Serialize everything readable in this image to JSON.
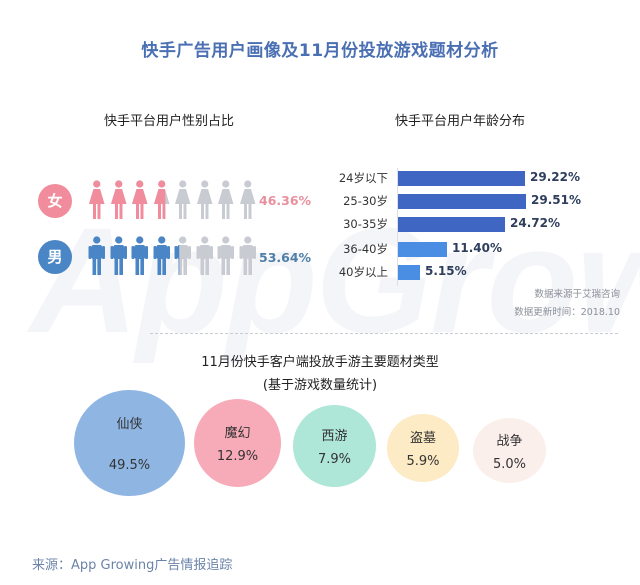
{
  "title": "快手广告用户画像及11月份投放游戏题材分析",
  "watermark": "AppGrowing",
  "gender": {
    "title": "快手平台用户性别占比",
    "rows": [
      {
        "label": "女",
        "percent": "46.36%",
        "color": "#f08c9c",
        "text_color": "#e8909e",
        "figures_filled": 3.7,
        "figure_type": "female"
      },
      {
        "label": "男",
        "percent": "53.64%",
        "color": "#4a86c5",
        "text_color": "#4f7fa8",
        "figures_filled": 4.3,
        "figure_type": "male"
      }
    ],
    "figures_total": 8,
    "empty_color": "#c8cbd2"
  },
  "age": {
    "title": "快手平台用户年龄分布",
    "rows": [
      {
        "label": "24岁以下",
        "value": "29.22%",
        "color": "#3e66c2"
      },
      {
        "label": "25-30岁",
        "value": "29.51%",
        "color": "#3e66c2"
      },
      {
        "label": "30-35岁",
        "value": "24.72%",
        "color": "#3e66c2"
      },
      {
        "label": "36-40岁",
        "value": "11.40%",
        "color": "#4a8ee3"
      },
      {
        "label": "40岁以上",
        "value": "5.15%",
        "color": "#4a8ee3"
      }
    ],
    "note_source": "数据来源于艾瑞咨询",
    "note_update": "数据更新时间：2018.10"
  },
  "themes": {
    "title": "11月份快手客户端投放手游主要题材类型",
    "subtitle": "(基于游戏数量统计)",
    "items": [
      {
        "name": "仙侠",
        "value": "49.5%",
        "color": "#8fb6e3"
      },
      {
        "name": "魔幻",
        "value": "12.9%",
        "color": "#f7aab8"
      },
      {
        "name": "西游",
        "value": "7.9%",
        "color": "#aee6d8"
      },
      {
        "name": "盗墓",
        "value": "5.9%",
        "color": "#fcebc4"
      },
      {
        "name": "战争",
        "value": "5.0%",
        "color": "#fbefec"
      }
    ]
  },
  "source": "来源：App Growing广告情报追踪",
  "chart_data": [
    {
      "type": "pictogram",
      "title": "快手平台用户性别占比",
      "categories": [
        "女",
        "男"
      ],
      "values": [
        46.36,
        53.64
      ],
      "unit": "%"
    },
    {
      "type": "bar",
      "orientation": "horizontal",
      "title": "快手平台用户年龄分布",
      "categories": [
        "24岁以下",
        "25-30岁",
        "30-35岁",
        "36-40岁",
        "40岁以上"
      ],
      "values": [
        29.22,
        29.51,
        24.72,
        11.4,
        5.15
      ],
      "unit": "%",
      "xlabel": "",
      "ylabel": "",
      "grid": false,
      "annotations": [
        "数据来源于艾瑞咨询",
        "数据更新时间：2018.10"
      ]
    },
    {
      "type": "bubble",
      "title": "11月份快手客户端投放手游主要题材类型",
      "subtitle": "(基于游戏数量统计)",
      "categories": [
        "仙侠",
        "魔幻",
        "西游",
        "盗墓",
        "战争"
      ],
      "values": [
        49.5,
        12.9,
        7.9,
        5.9,
        5.0
      ],
      "unit": "%"
    }
  ]
}
